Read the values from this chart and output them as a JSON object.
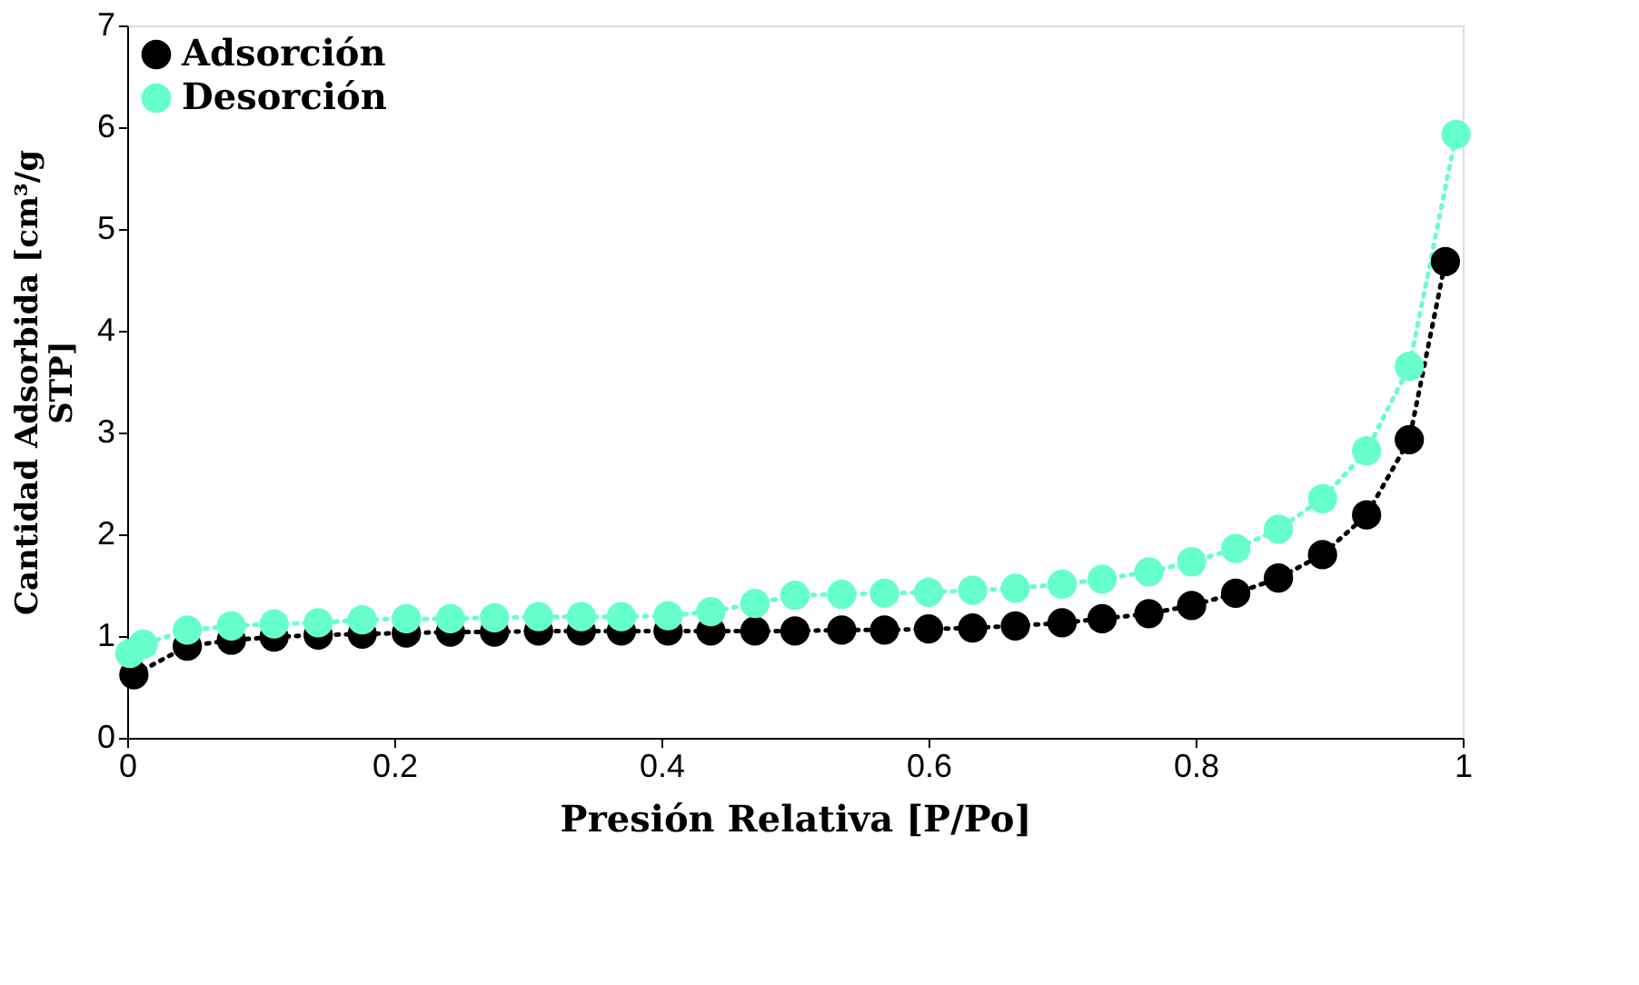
{
  "chart_data": {
    "type": "line",
    "xlabel": "Presión Relativa [P/Po]",
    "ylabel": "Cantidad Adsorbida [cm³/g STP]",
    "xlim": [
      0,
      1
    ],
    "xticks": [
      0,
      0.2,
      0.4,
      0.6,
      0.8,
      1
    ],
    "ylim": [
      0,
      7
    ],
    "yticks": [
      0,
      1,
      2,
      3,
      4,
      5,
      6,
      7
    ],
    "grid": false,
    "legend": "top left",
    "marker": "circle",
    "line_style": "dotted",
    "series": [
      {
        "name": "Adsorción",
        "color": "#000000",
        "x": [
          0.005,
          0.045,
          0.078,
          0.11,
          0.143,
          0.176,
          0.209,
          0.242,
          0.275,
          0.308,
          0.34,
          0.37,
          0.405,
          0.437,
          0.47,
          0.5,
          0.535,
          0.567,
          0.6,
          0.633,
          0.665,
          0.7,
          0.73,
          0.765,
          0.797,
          0.83,
          0.862,
          0.895,
          0.928,
          0.96,
          0.987
        ],
        "values": [
          0.62,
          0.9,
          0.96,
          0.99,
          1.01,
          1.02,
          1.03,
          1.04,
          1.04,
          1.05,
          1.05,
          1.05,
          1.05,
          1.05,
          1.05,
          1.05,
          1.06,
          1.06,
          1.07,
          1.08,
          1.1,
          1.13,
          1.17,
          1.22,
          1.3,
          1.42,
          1.57,
          1.8,
          2.19,
          2.93,
          4.68
        ]
      },
      {
        "name": "Desorción",
        "color": "#66ffcc",
        "x": [
          0.002,
          0.012,
          0.045,
          0.078,
          0.11,
          0.143,
          0.176,
          0.209,
          0.242,
          0.275,
          0.308,
          0.34,
          0.37,
          0.405,
          0.437,
          0.47,
          0.5,
          0.535,
          0.567,
          0.6,
          0.633,
          0.665,
          0.7,
          0.73,
          0.765,
          0.797,
          0.83,
          0.862,
          0.895,
          0.928,
          0.96,
          0.995
        ],
        "values": [
          0.83,
          0.92,
          1.06,
          1.1,
          1.12,
          1.13,
          1.16,
          1.17,
          1.17,
          1.18,
          1.19,
          1.19,
          1.19,
          1.2,
          1.24,
          1.32,
          1.4,
          1.41,
          1.42,
          1.43,
          1.45,
          1.47,
          1.51,
          1.56,
          1.63,
          1.73,
          1.86,
          2.05,
          2.35,
          2.82,
          3.65,
          5.93
        ]
      }
    ]
  }
}
